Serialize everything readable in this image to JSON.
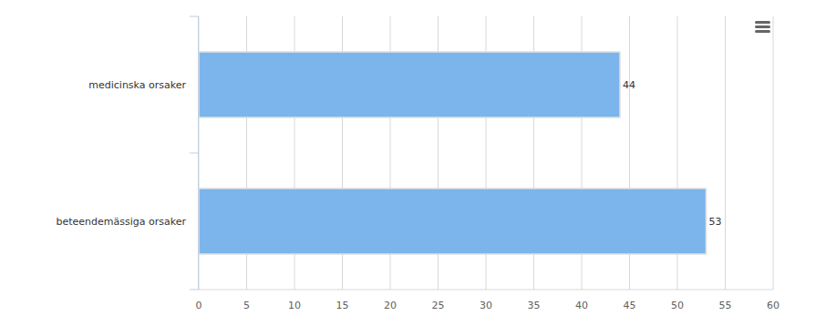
{
  "chart_data": {
    "type": "bar",
    "orientation": "horizontal",
    "categories": [
      "medicinska orsaker",
      "beteendemässiga orsaker"
    ],
    "values": [
      44,
      53
    ],
    "color": "#7cb5ec",
    "xlim": [
      0,
      60
    ],
    "xticks": [
      0,
      5,
      10,
      15,
      20,
      25,
      30,
      35,
      40,
      45,
      50,
      55,
      60
    ],
    "grid": true,
    "data_labels": true
  }
}
